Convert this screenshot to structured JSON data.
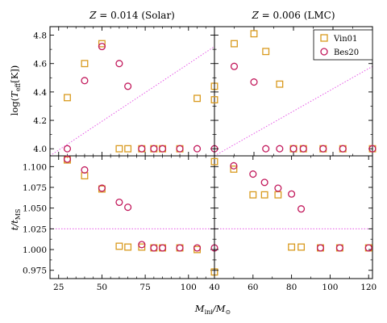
{
  "figure": {
    "xlabel": {
      "main": "M",
      "sub1": "ini",
      "slash": "/M",
      "sub2": "⊙"
    },
    "ylabel_top": {
      "pre": "log(",
      "main": "T",
      "sub": "eff",
      "post": "[K])"
    },
    "ylabel_bottom": {
      "main": "t/t",
      "sub": "MS"
    }
  },
  "colors": {
    "vin01": "#d99a1e",
    "bes20": "#c2185b",
    "refline": "#e659e6",
    "axis": "#000000"
  },
  "legend": {
    "location": "top-right",
    "entries": [
      "Vin01",
      "Bes20"
    ]
  },
  "chart_data": [
    {
      "type": "scatter",
      "panel": "top-left",
      "title": "Z = 0.014 (Solar)",
      "title_parts": {
        "z": "Z",
        "rest": " = 0.014 (Solar)"
      },
      "xlim": [
        20,
        115
      ],
      "ylim": [
        3.95,
        4.86
      ],
      "xticks": [
        25,
        50,
        75,
        100
      ],
      "xminor": [
        30,
        35,
        40,
        45,
        55,
        60,
        65,
        70,
        80,
        85,
        90,
        95,
        105,
        110
      ],
      "yticks": [
        4.0,
        4.2,
        4.4,
        4.6,
        4.8
      ],
      "ytick_labels": [
        "4.0",
        "4.2",
        "4.4",
        "4.6",
        "4.8"
      ],
      "yminor": [
        4.1,
        4.3,
        4.5,
        4.7
      ],
      "show_xtick_labels": false,
      "show_ytick_labels": true,
      "series": [
        {
          "name": "Vin01",
          "marker": "square",
          "x": [
            30,
            40,
            50,
            60,
            65,
            73,
            80,
            85,
            95,
            105,
            115
          ],
          "y": [
            4.36,
            4.6,
            4.74,
            4.0,
            4.0,
            4.0,
            4.0,
            4.0,
            4.0,
            4.355,
            4.44
          ]
        },
        {
          "name": "Bes20",
          "marker": "circle",
          "x": [
            30,
            40,
            50,
            60,
            65,
            73,
            80,
            85,
            95,
            105,
            115
          ],
          "y": [
            4.0,
            4.48,
            4.72,
            4.6,
            4.44,
            4.0,
            4.0,
            4.0,
            4.0,
            4.0,
            4.0
          ]
        }
      ],
      "refline": {
        "x": [
          20,
          115
        ],
        "y": [
          3.95,
          4.72
        ]
      }
    },
    {
      "type": "scatter",
      "panel": "top-right",
      "title": "Z = 0.006 (LMC)",
      "title_parts": {
        "z": "Z",
        "rest": " = 0.006 (LMC)"
      },
      "xlim": [
        40,
        120
      ],
      "ylim": [
        3.95,
        4.86
      ],
      "xticks": [
        40,
        60,
        80,
        100,
        120
      ],
      "xminor": [
        50,
        70,
        90,
        110
      ],
      "yticks": [
        4.0,
        4.2,
        4.4,
        4.6,
        4.8
      ],
      "ytick_labels": [],
      "yminor": [
        4.1,
        4.3,
        4.5,
        4.7
      ],
      "show_xtick_labels": false,
      "show_ytick_labels": false,
      "series": [
        {
          "name": "Vin01",
          "marker": "square",
          "x": [
            40,
            50,
            60,
            66,
            73,
            80,
            85,
            95,
            105,
            120
          ],
          "y": [
            4.345,
            4.74,
            4.81,
            4.685,
            4.455,
            4.0,
            4.0,
            4.0,
            4.0,
            4.0
          ]
        },
        {
          "name": "Bes20",
          "marker": "circle",
          "x": [
            50,
            60,
            66,
            73,
            80,
            85,
            95,
            105,
            120
          ],
          "y": [
            4.58,
            4.47,
            4.0,
            4.0,
            4.0,
            4.0,
            4.0,
            4.0,
            4.0
          ]
        }
      ],
      "refline": {
        "x": [
          40,
          120
        ],
        "y": [
          3.95,
          4.58
        ]
      }
    },
    {
      "type": "scatter",
      "panel": "bottom-left",
      "title": "",
      "xlim": [
        20,
        115
      ],
      "ylim": [
        0.965,
        1.113
      ],
      "xticks": [
        25,
        50,
        75,
        100
      ],
      "xtick_labels": [
        "25",
        "50",
        "75",
        "100"
      ],
      "xminor": [
        30,
        35,
        40,
        45,
        55,
        60,
        65,
        70,
        80,
        85,
        90,
        95,
        105,
        110
      ],
      "yticks": [
        0.975,
        1.0,
        1.025,
        1.05,
        1.075,
        1.1
      ],
      "ytick_labels": [
        "0.975",
        "1.000",
        "1.025",
        "1.050",
        "1.075",
        "1.100"
      ],
      "yminor": [
        0.9875,
        1.0125,
        1.0375,
        1.0625,
        1.0875
      ],
      "show_xtick_labels": true,
      "show_ytick_labels": true,
      "series": [
        {
          "name": "Vin01",
          "marker": "square",
          "x": [
            30,
            40,
            50,
            60,
            65,
            73,
            80,
            85,
            95,
            105,
            115
          ],
          "y": [
            1.108,
            1.089,
            1.073,
            1.004,
            1.003,
            1.003,
            1.002,
            1.002,
            1.002,
            1.0,
            0.973
          ]
        },
        {
          "name": "Bes20",
          "marker": "circle",
          "x": [
            30,
            40,
            50,
            60,
            65,
            73,
            80,
            85,
            95,
            105,
            115
          ],
          "y": [
            1.109,
            1.096,
            1.074,
            1.057,
            1.051,
            1.006,
            1.002,
            1.002,
            1.002,
            1.002,
            1.002
          ]
        }
      ],
      "refline": {
        "x": [
          20,
          115
        ],
        "y": [
          1.025,
          1.025
        ]
      }
    },
    {
      "type": "scatter",
      "panel": "bottom-right",
      "title": "",
      "xlim": [
        40,
        122
      ],
      "ylim": [
        0.965,
        1.113
      ],
      "xticks": [
        40,
        60,
        80,
        100,
        120
      ],
      "xtick_labels": [
        "40",
        "60",
        "80",
        "100",
        "120"
      ],
      "xminor": [
        50,
        70,
        90,
        110
      ],
      "yticks": [
        0.975,
        1.0,
        1.025,
        1.05,
        1.075,
        1.1
      ],
      "ytick_labels": [],
      "yminor": [
        0.9875,
        1.0125,
        1.0375,
        1.0625,
        1.0875
      ],
      "show_xtick_labels": true,
      "show_ytick_labels": false,
      "series": [
        {
          "name": "Vin01",
          "marker": "square",
          "x": [
            40,
            50,
            60,
            66,
            73,
            80,
            85,
            95,
            105,
            120
          ],
          "y": [
            1.106,
            1.097,
            1.066,
            1.066,
            1.066,
            1.003,
            1.003,
            1.002,
            1.002,
            1.002
          ]
        },
        {
          "name": "Bes20",
          "marker": "circle",
          "x": [
            50,
            60,
            66,
            73,
            80,
            85,
            95,
            105,
            120
          ],
          "y": [
            1.101,
            1.091,
            1.081,
            1.074,
            1.067,
            1.049,
            1.002,
            1.002,
            1.002
          ]
        }
      ],
      "refline": {
        "x": [
          40,
          122
        ],
        "y": [
          1.025,
          1.025
        ]
      }
    }
  ]
}
